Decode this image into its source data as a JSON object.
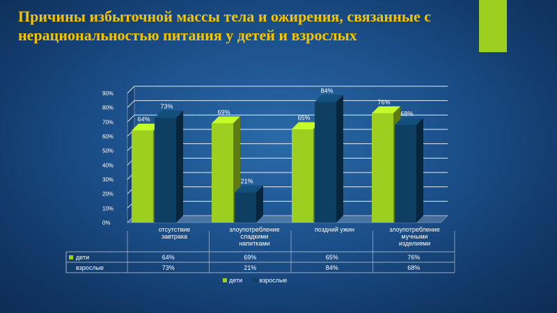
{
  "slide": {
    "title": "Причины избыточной массы тела и ожирения, связанные с нерациональностью питания у детей и взрослых"
  },
  "colors": {
    "children": "#9ccf1f",
    "adults": "#0e3f63",
    "title": "#f5c400",
    "text": "#ffffff"
  },
  "chart_data": {
    "type": "bar",
    "categories": [
      [
        "отсутствие",
        "завтрака"
      ],
      [
        "злоупотребление",
        "сладкими",
        "напитками"
      ],
      [
        "поздний ужин"
      ],
      [
        "злоупотребление",
        "мучными",
        "изделиями"
      ]
    ],
    "series": [
      {
        "name": "дети",
        "values": [
          64,
          69,
          65,
          76
        ],
        "labels": [
          "64%",
          "69%",
          "65%",
          "76%"
        ]
      },
      {
        "name": "взрослые",
        "values": [
          73,
          21,
          84,
          68
        ],
        "labels": [
          "73%",
          "21%",
          "84%",
          "68%"
        ]
      }
    ],
    "yticks": [
      "0%",
      "10%",
      "20%",
      "30%",
      "40%",
      "50%",
      "60%",
      "70%",
      "80%",
      "90%"
    ],
    "ylim": [
      0,
      90
    ],
    "grid": true,
    "legend": "bottom",
    "data_table": true
  }
}
